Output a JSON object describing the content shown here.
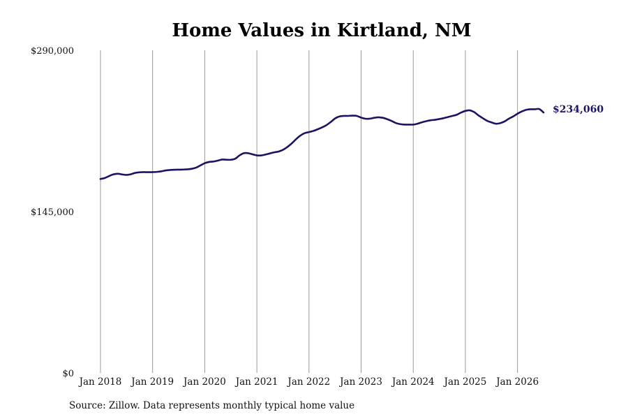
{
  "chart_data": {
    "type": "line",
    "title": "Home Values in Kirtland, NM",
    "xlabel": "",
    "ylabel": "",
    "ylim": [
      0,
      290000
    ],
    "y_ticks": [
      {
        "value": 0,
        "label": "$0"
      },
      {
        "value": 145000,
        "label": "$145,000"
      },
      {
        "value": 290000,
        "label": "$290,000"
      }
    ],
    "x_range": [
      "2018-01",
      "2026-07"
    ],
    "x_ticks": [
      {
        "date": "2018-01",
        "label": "Jan 2018"
      },
      {
        "date": "2019-01",
        "label": "Jan 2019"
      },
      {
        "date": "2020-01",
        "label": "Jan 2020"
      },
      {
        "date": "2021-01",
        "label": "Jan 2021"
      },
      {
        "date": "2022-01",
        "label": "Jan 2022"
      },
      {
        "date": "2023-01",
        "label": "Jan 2023"
      },
      {
        "date": "2024-01",
        "label": "Jan 2024"
      },
      {
        "date": "2025-01",
        "label": "Jan 2025"
      },
      {
        "date": "2026-01",
        "label": "Jan 2026"
      }
    ],
    "grid": {
      "vertical": true,
      "horizontal": false
    },
    "line_color": "#1a1464",
    "end_label": "$234,060",
    "series": [
      {
        "x": [
          "2018-01",
          "2018-02",
          "2018-03",
          "2018-04",
          "2018-05",
          "2018-06",
          "2018-07",
          "2018-08",
          "2018-09",
          "2018-10",
          "2018-11",
          "2018-12",
          "2019-01",
          "2019-02",
          "2019-03",
          "2019-04",
          "2019-05",
          "2019-06",
          "2019-07",
          "2019-08",
          "2019-09",
          "2019-10",
          "2019-11",
          "2019-12",
          "2020-01",
          "2020-02",
          "2020-03",
          "2020-04",
          "2020-05",
          "2020-06",
          "2020-07",
          "2020-08",
          "2020-09",
          "2020-10",
          "2020-11",
          "2020-12",
          "2021-01",
          "2021-02",
          "2021-03",
          "2021-04",
          "2021-05",
          "2021-06",
          "2021-07",
          "2021-08",
          "2021-09",
          "2021-10",
          "2021-11",
          "2021-12",
          "2022-01",
          "2022-02",
          "2022-03",
          "2022-04",
          "2022-05",
          "2022-06",
          "2022-07",
          "2022-08",
          "2022-09",
          "2022-10",
          "2022-11",
          "2022-12",
          "2023-01",
          "2023-02",
          "2023-03",
          "2023-04",
          "2023-05",
          "2023-06",
          "2023-07",
          "2023-08",
          "2023-09",
          "2023-10",
          "2023-11",
          "2023-12",
          "2024-01",
          "2024-02",
          "2024-03",
          "2024-04",
          "2024-05",
          "2024-06",
          "2024-07",
          "2024-08",
          "2024-09",
          "2024-10",
          "2024-11",
          "2024-12",
          "2025-01",
          "2025-02",
          "2025-03",
          "2025-04",
          "2025-05",
          "2025-06",
          "2025-07",
          "2025-08",
          "2025-09",
          "2025-10",
          "2025-11",
          "2025-12",
          "2026-01",
          "2026-02",
          "2026-03",
          "2026-04",
          "2026-05",
          "2026-06",
          "2026-07"
        ],
        "values": [
          174300,
          175200,
          177000,
          178500,
          179000,
          178400,
          178000,
          178600,
          179800,
          180300,
          180500,
          180400,
          180500,
          180700,
          181200,
          182000,
          182400,
          182600,
          182700,
          182800,
          183000,
          183500,
          184500,
          186500,
          188500,
          189600,
          190000,
          190800,
          191800,
          191600,
          191600,
          192500,
          195500,
          197500,
          197500,
          196500,
          195500,
          195500,
          196300,
          197300,
          198300,
          199000,
          200500,
          203000,
          206200,
          210000,
          213300,
          215500,
          216500,
          217500,
          219000,
          220700,
          222700,
          225500,
          228700,
          230500,
          231000,
          231000,
          231300,
          231000,
          229500,
          228500,
          228500,
          229300,
          229800,
          229300,
          228100,
          226500,
          224600,
          223600,
          223200,
          223200,
          223200,
          224000,
          225300,
          226300,
          227100,
          227500,
          228200,
          229000,
          230000,
          231000,
          232000,
          234000,
          235500,
          236000,
          234500,
          231500,
          229000,
          226600,
          225200,
          224000,
          224500,
          226000,
          228500,
          230500,
          233000,
          235000,
          236500,
          237000,
          237000,
          237200,
          234060
        ]
      }
    ]
  },
  "source": "Source: Zillow. Data represents monthly typical home value"
}
